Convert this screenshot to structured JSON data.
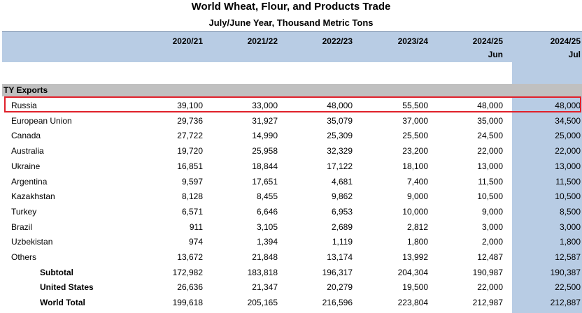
{
  "title": "World Wheat, Flour, and Products Trade",
  "subtitle": "July/June Year, Thousand Metric Tons",
  "columns": [
    {
      "year": "2020/21",
      "month": ""
    },
    {
      "year": "2021/22",
      "month": ""
    },
    {
      "year": "2022/23",
      "month": ""
    },
    {
      "year": "2023/24",
      "month": ""
    },
    {
      "year": "2024/25",
      "month": "Jun"
    },
    {
      "year": "2024/25",
      "month": "Jul"
    }
  ],
  "section": "TY Exports",
  "highlight_color": "#e0202a",
  "header_color": "#b8cce4",
  "rows": [
    {
      "name": "Russia",
      "values": [
        "39,100",
        "33,000",
        "48,000",
        "55,500",
        "48,000",
        "48,000"
      ]
    },
    {
      "name": "European Union",
      "values": [
        "29,736",
        "31,927",
        "35,079",
        "37,000",
        "35,000",
        "34,500"
      ]
    },
    {
      "name": "Canada",
      "values": [
        "27,722",
        "14,990",
        "25,309",
        "25,500",
        "24,500",
        "25,000"
      ]
    },
    {
      "name": "Australia",
      "values": [
        "19,720",
        "25,958",
        "32,329",
        "23,200",
        "22,000",
        "22,000"
      ]
    },
    {
      "name": "Ukraine",
      "values": [
        "16,851",
        "18,844",
        "17,122",
        "18,100",
        "13,000",
        "13,000"
      ]
    },
    {
      "name": "Argentina",
      "values": [
        "9,597",
        "17,651",
        "4,681",
        "7,400",
        "11,500",
        "11,500"
      ]
    },
    {
      "name": "Kazakhstan",
      "values": [
        "8,128",
        "8,455",
        "9,862",
        "9,000",
        "10,500",
        "10,500"
      ]
    },
    {
      "name": "Turkey",
      "values": [
        "6,571",
        "6,646",
        "6,953",
        "10,000",
        "9,000",
        "8,500"
      ]
    },
    {
      "name": "Brazil",
      "values": [
        "911",
        "3,105",
        "2,689",
        "2,812",
        "3,000",
        "3,000"
      ]
    },
    {
      "name": "Uzbekistan",
      "values": [
        "974",
        "1,394",
        "1,119",
        "1,800",
        "2,000",
        "1,800"
      ]
    },
    {
      "name": "Others",
      "values": [
        "13,672",
        "21,848",
        "13,174",
        "13,992",
        "12,487",
        "12,587"
      ]
    },
    {
      "name": "Subtotal",
      "values": [
        "172,982",
        "183,818",
        "196,317",
        "204,304",
        "190,987",
        "190,387"
      ],
      "bold": true
    },
    {
      "name": "United States",
      "values": [
        "26,636",
        "21,347",
        "20,279",
        "19,500",
        "22,000",
        "22,500"
      ],
      "bold": true
    },
    {
      "name": "World Total",
      "values": [
        "199,618",
        "205,165",
        "216,596",
        "223,804",
        "212,987",
        "212,887"
      ],
      "bold": true
    }
  ]
}
